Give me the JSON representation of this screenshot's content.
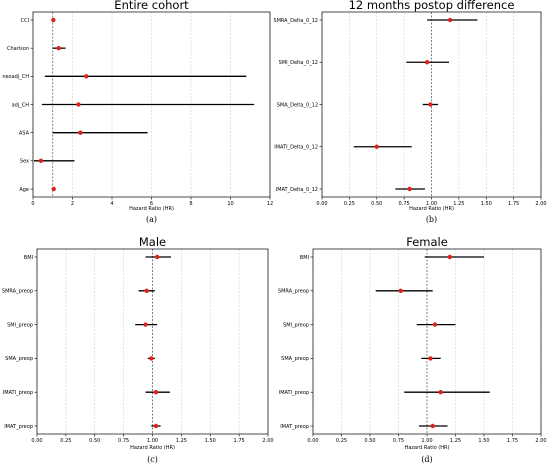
{
  "chart_data": [
    {
      "id": "a",
      "type": "scatter",
      "title": "Entire cohort",
      "xlabel": "Hazard Ratio (HR)",
      "panel_label": "(a)",
      "xlim": [
        0,
        12
      ],
      "xticks": [
        0,
        2,
        4,
        6,
        8,
        10,
        12
      ],
      "xtick_labels": [
        "0",
        "2",
        "4",
        "6",
        "8",
        "10",
        "12"
      ],
      "reference_line": 1,
      "grid": true,
      "rows": [
        {
          "label": "CCI",
          "hr": 1.03,
          "lo": 1.0,
          "hi": 1.07
        },
        {
          "label": "Charlson",
          "hr": 1.3,
          "lo": 1.0,
          "hi": 1.65
        },
        {
          "label": "neoadj_CH",
          "hr": 2.7,
          "lo": 0.6,
          "hi": 10.8
        },
        {
          "label": "adj_CH",
          "hr": 2.3,
          "lo": 0.45,
          "hi": 11.2
        },
        {
          "label": "ASA",
          "hr": 2.4,
          "lo": 1.0,
          "hi": 5.8
        },
        {
          "label": "Sex",
          "hr": 0.4,
          "lo": 0.05,
          "hi": 2.1
        },
        {
          "label": "Age",
          "hr": 1.05,
          "lo": 1.0,
          "hi": 1.1
        }
      ]
    },
    {
      "id": "b",
      "type": "scatter",
      "title": "12 months postop difference",
      "xlabel": "Hazard Ratio (HR)",
      "panel_label": "(b)",
      "xlim": [
        0,
        2
      ],
      "xticks": [
        0,
        0.25,
        0.5,
        0.75,
        1.0,
        1.25,
        1.5,
        1.75,
        2.0
      ],
      "xtick_labels": [
        "0.00",
        "0.25",
        "0.50",
        "0.75",
        "1.00",
        "1.25",
        "1.50",
        "1.75",
        "2.00"
      ],
      "reference_line": 1,
      "grid": true,
      "rows": [
        {
          "label": "SMRA_Delta_0_12",
          "hr": 1.17,
          "lo": 0.96,
          "hi": 1.42
        },
        {
          "label": "SMI_Delta_0_12",
          "hr": 0.96,
          "lo": 0.77,
          "hi": 1.16
        },
        {
          "label": "SMA_Delta_0_12",
          "hr": 0.99,
          "lo": 0.92,
          "hi": 1.06
        },
        {
          "label": "IMATI_Delta_0_12",
          "hr": 0.5,
          "lo": 0.29,
          "hi": 0.82
        },
        {
          "label": "IMAT_Delta_0_12",
          "hr": 0.8,
          "lo": 0.67,
          "hi": 0.94
        }
      ]
    },
    {
      "id": "c",
      "type": "scatter",
      "title": "Male",
      "xlabel": "Hazard Ratio (HR)",
      "panel_label": "(c)",
      "xlim": [
        0,
        2
      ],
      "xticks": [
        0,
        0.25,
        0.5,
        0.75,
        1.0,
        1.25,
        1.5,
        1.75,
        2.0
      ],
      "xtick_labels": [
        "0.00",
        "0.25",
        "0.50",
        "0.75",
        "1.00",
        "1.25",
        "1.50",
        "1.75",
        "2.00"
      ],
      "reference_line": 1,
      "grid": true,
      "rows": [
        {
          "label": "BMI",
          "hr": 1.04,
          "lo": 0.94,
          "hi": 1.16
        },
        {
          "label": "SMRA_preop",
          "hr": 0.95,
          "lo": 0.88,
          "hi": 1.02
        },
        {
          "label": "SMI_preop",
          "hr": 0.94,
          "lo": 0.85,
          "hi": 1.04
        },
        {
          "label": "SMA_preop",
          "hr": 0.99,
          "lo": 0.96,
          "hi": 1.02
        },
        {
          "label": "IMATI_preop",
          "hr": 1.03,
          "lo": 0.94,
          "hi": 1.15
        },
        {
          "label": "IMAT_preop",
          "hr": 1.03,
          "lo": 0.99,
          "hi": 1.07
        }
      ]
    },
    {
      "id": "d",
      "type": "scatter",
      "title": "Female",
      "xlabel": "Hazard Ratio (HR)",
      "panel_label": "(d)",
      "xlim": [
        0,
        2
      ],
      "xticks": [
        0,
        0.25,
        0.5,
        0.75,
        1.0,
        1.25,
        1.5,
        1.75,
        2.0
      ],
      "xtick_labels": [
        "0.00",
        "0.25",
        "0.50",
        "0.75",
        "1.00",
        "1.25",
        "1.50",
        "1.75",
        "2.00"
      ],
      "reference_line": 1,
      "grid": true,
      "rows": [
        {
          "label": "BMI",
          "hr": 1.2,
          "lo": 0.98,
          "hi": 1.5
        },
        {
          "label": "SMRA_preop",
          "hr": 0.77,
          "lo": 0.55,
          "hi": 1.05
        },
        {
          "label": "SMI_preop",
          "hr": 1.07,
          "lo": 0.91,
          "hi": 1.25
        },
        {
          "label": "SMA_preop",
          "hr": 1.03,
          "lo": 0.95,
          "hi": 1.12
        },
        {
          "label": "IMATI_preop",
          "hr": 1.12,
          "lo": 0.8,
          "hi": 1.55
        },
        {
          "label": "IMAT_preop",
          "hr": 1.05,
          "lo": 0.93,
          "hi": 1.18
        }
      ]
    }
  ],
  "colors": {
    "point": "#e0201b",
    "interval": "#000000",
    "grid": "#cfcfcf",
    "reference": "#555555"
  }
}
